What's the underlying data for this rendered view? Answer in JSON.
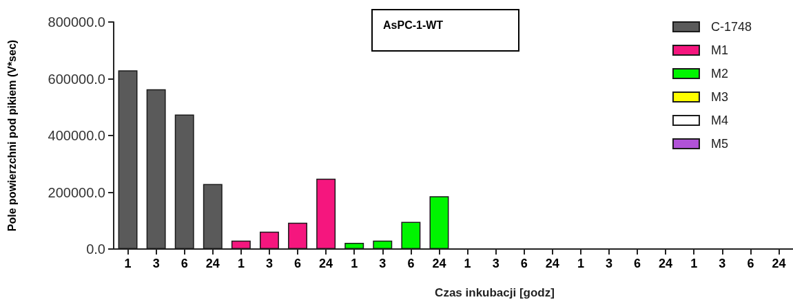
{
  "chart_data": {
    "type": "bar",
    "title": "AsPC-1-WT",
    "xlabel": "Czas inkubacji [godz]",
    "ylabel": "Pole powierzchni pod pikiem (V*sec)",
    "categories": [
      "1",
      "3",
      "6",
      "24",
      "1",
      "3",
      "6",
      "24",
      "1",
      "3",
      "6",
      "24",
      "1",
      "3",
      "6",
      "24",
      "1",
      "3",
      "6",
      "24",
      "1",
      "3",
      "6",
      "24"
    ],
    "series": [
      {
        "name": "C-1748",
        "color": "#5a5a5a",
        "values": [
          630000,
          563000,
          474000,
          229000,
          null,
          null,
          null,
          null,
          null,
          null,
          null,
          null,
          null,
          null,
          null,
          null,
          null,
          null,
          null,
          null,
          null,
          null,
          null,
          null
        ]
      },
      {
        "name": "M1",
        "color": "#f5167e",
        "values": [
          null,
          null,
          null,
          null,
          30000,
          61000,
          93000,
          248000,
          null,
          null,
          null,
          null,
          null,
          null,
          null,
          null,
          null,
          null,
          null,
          null,
          null,
          null,
          null,
          null
        ]
      },
      {
        "name": "M2",
        "color": "#00f500",
        "values": [
          null,
          null,
          null,
          null,
          null,
          null,
          null,
          null,
          22000,
          30000,
          96000,
          186000,
          null,
          null,
          null,
          null,
          null,
          null,
          null,
          null,
          null,
          null,
          null,
          null
        ]
      },
      {
        "name": "M3",
        "color": "#ffff00",
        "values": [
          null,
          null,
          null,
          null,
          null,
          null,
          null,
          null,
          null,
          null,
          null,
          null,
          null,
          null,
          null,
          null,
          null,
          null,
          null,
          null,
          null,
          null,
          null,
          null
        ]
      },
      {
        "name": "M4",
        "color": "#ffffff",
        "values": [
          null,
          null,
          null,
          null,
          null,
          null,
          null,
          null,
          null,
          null,
          null,
          null,
          null,
          null,
          null,
          null,
          null,
          null,
          null,
          null,
          null,
          null,
          null,
          null
        ]
      },
      {
        "name": "M5",
        "color": "#b152d8",
        "values": [
          null,
          null,
          null,
          null,
          null,
          null,
          null,
          null,
          null,
          null,
          null,
          null,
          null,
          null,
          null,
          null,
          null,
          null,
          null,
          null,
          null,
          null,
          null,
          null
        ]
      }
    ],
    "ylim": [
      0,
      800000
    ],
    "yticks": [
      {
        "value": 0,
        "label": "0.0"
      },
      {
        "value": 200000,
        "label": "200000.0"
      },
      {
        "value": 400000,
        "label": "400000.0"
      },
      {
        "value": 600000,
        "label": "600000.0"
      },
      {
        "value": 800000,
        "label": "800000.0"
      }
    ],
    "grid": false,
    "legend": "top right"
  }
}
